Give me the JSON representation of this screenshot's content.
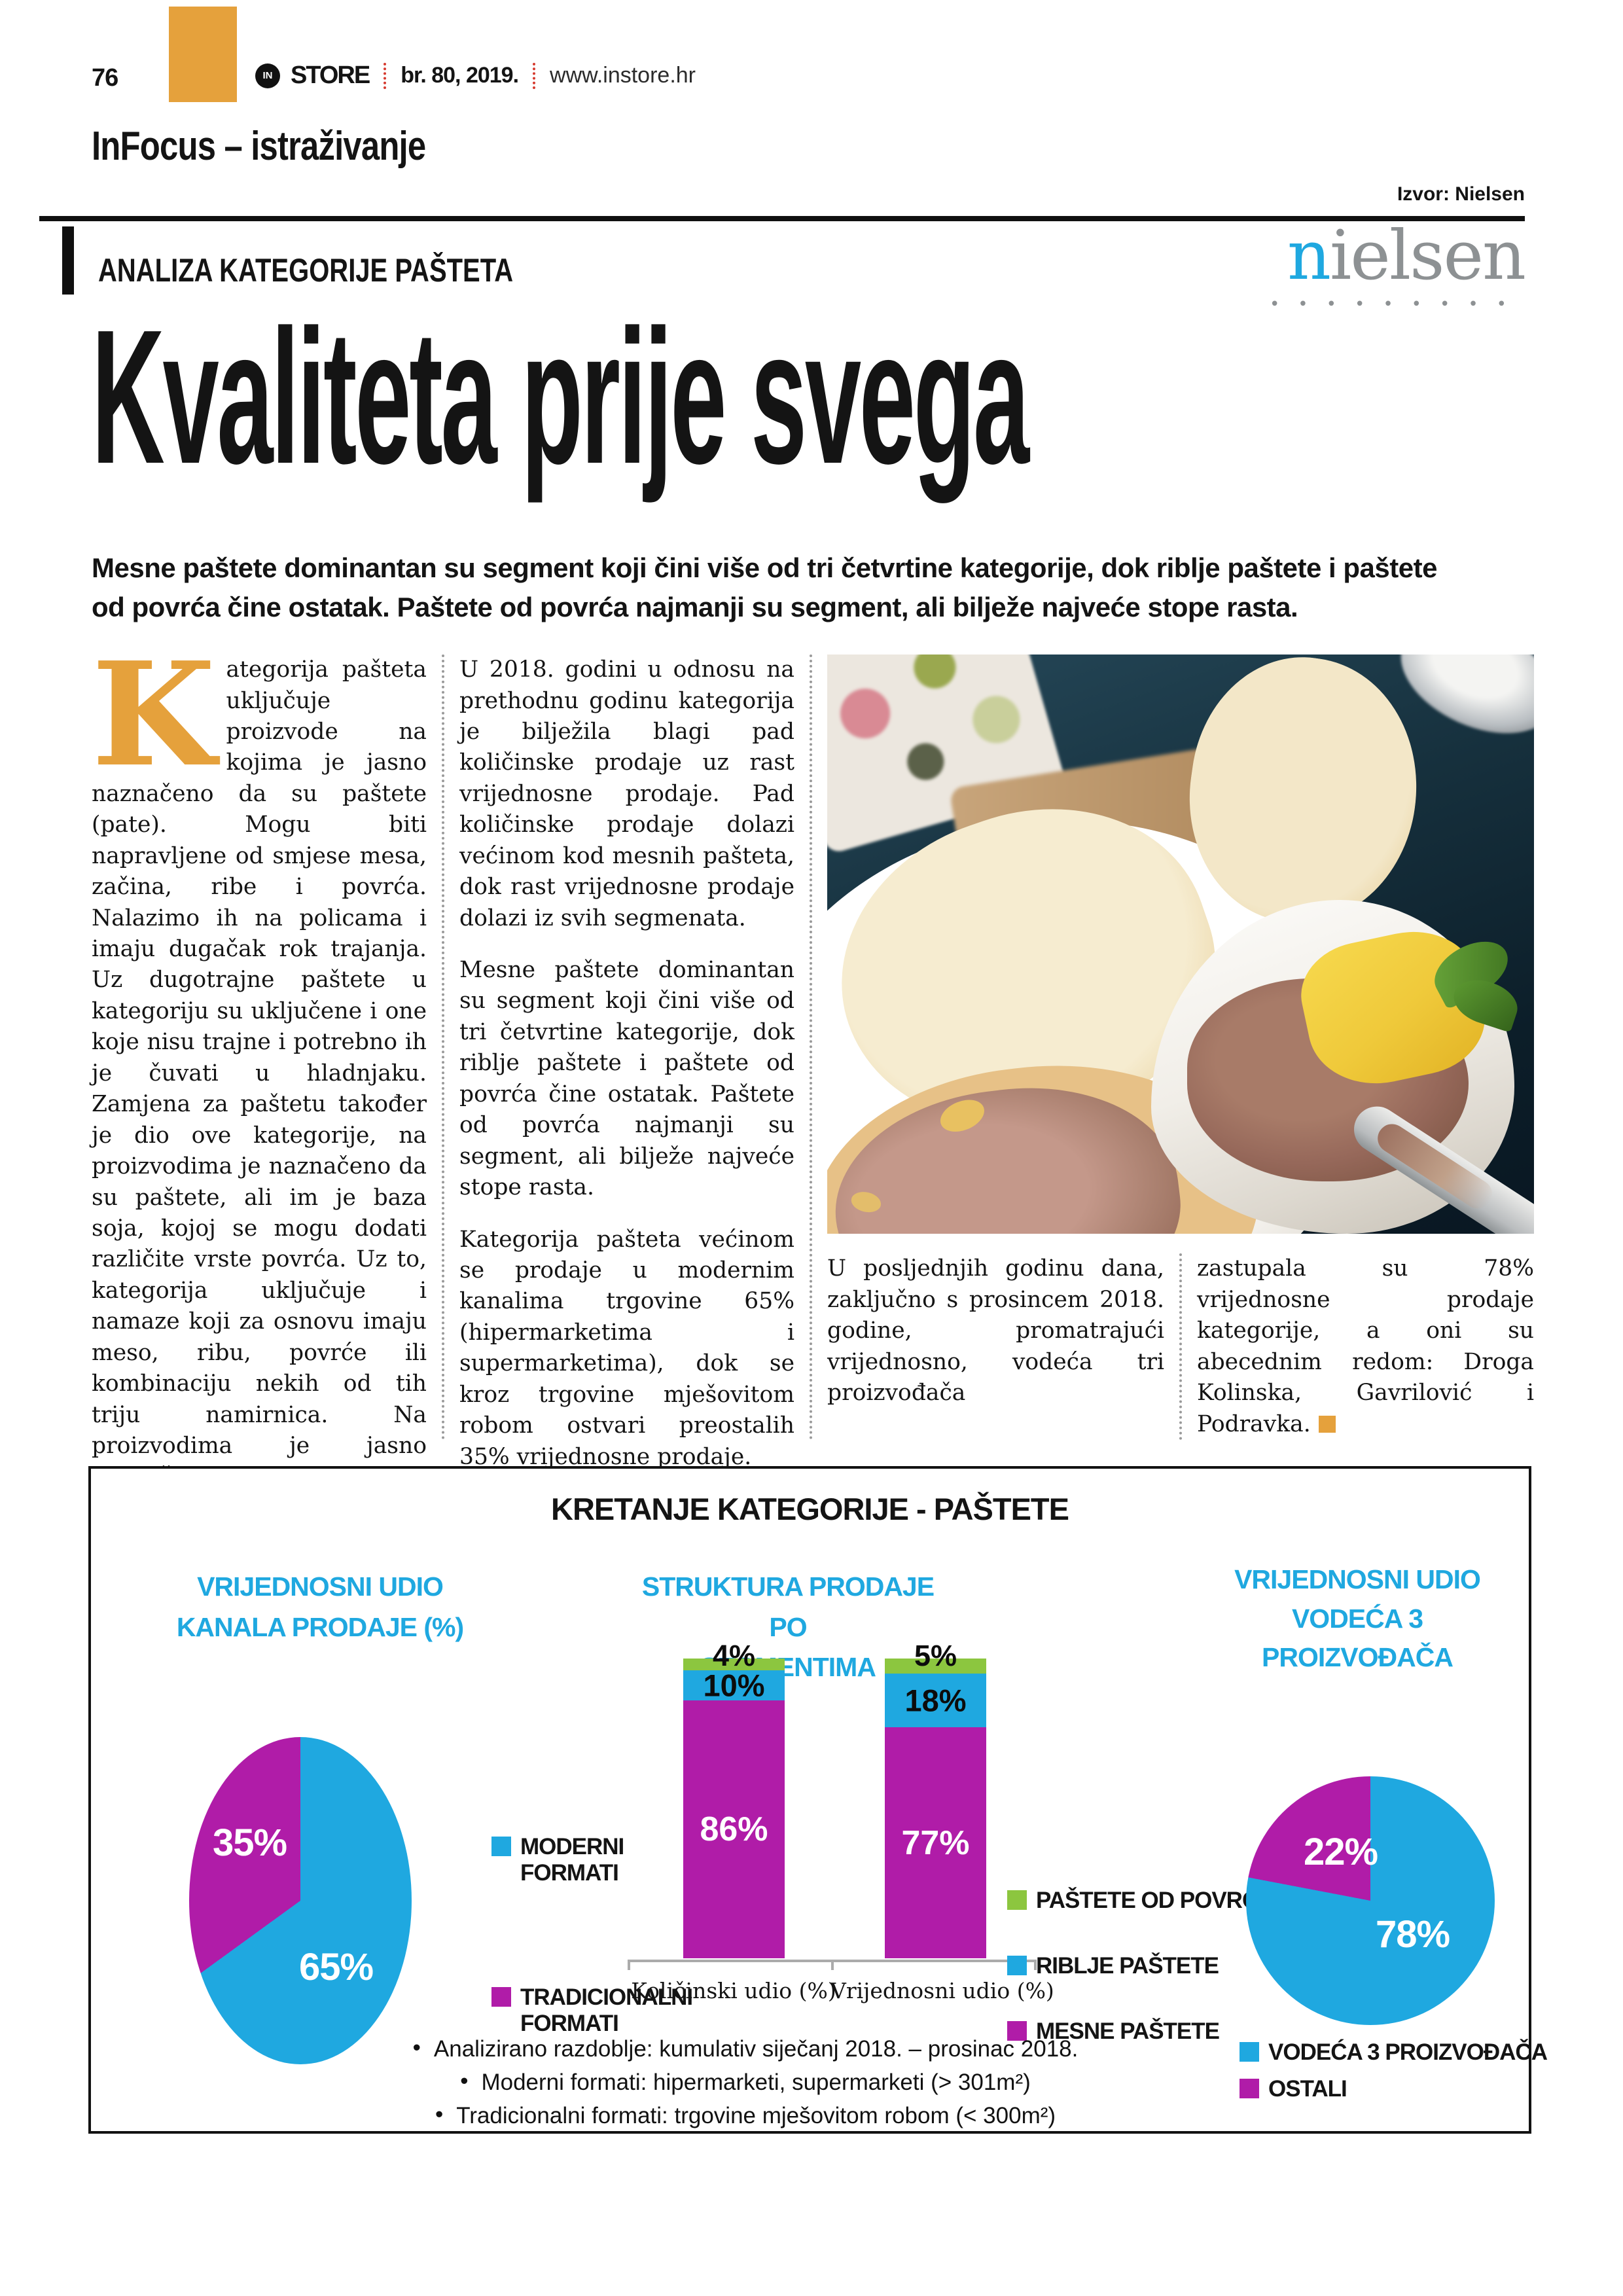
{
  "page_header": {
    "page_number": "76",
    "logo_prefix": "IN",
    "logo_name": "STORE",
    "issue": "br. 80, 2019.",
    "website": "www.instore.hr"
  },
  "section_header": {
    "title": "InFocus – istraživanje",
    "source": "Izvor: Nielsen",
    "kicker": "ANALIZA KATEGORIJE PAŠTETA",
    "nielsen_first": "n",
    "nielsen_rest": "ielsen",
    "nielsen_dots": "•••••••••"
  },
  "article": {
    "headline": "Kvaliteta prije svega",
    "lead": "Mesne paštete dominantan su segment koji čini više od tri četvrtine kategorije, dok riblje paštete i paštete od povrća čine ostatak. Paštete od povrća najmanji su segment, ali bilježe najveće stope rasta.",
    "dropcap": "K",
    "col1": "ategorija pašteta uključuje proizvode na kojima je jasno naznačeno da su paštete (pate). Mogu biti napravljene od smjese mesa, začina, ribe i povrća. Nalazimo ih na policama i imaju dugačak rok trajanja. Uz dugotrajne paštete u kategoriju su uključene i one koje nisu trajne i potrebno ih je čuvati u hladnjaku. Zamjena za paštetu također je dio ove kategorije, na proizvodima je naznačeno da su paštete, ali im je baza soja, kojoj se mogu dodati različite vrste povrća. Uz to, kategorija uključuje i namaze koji za osnovu imaju meso, ribu, povrće ili kombinaciju nekih od tih triju namirnica. Na proizvodima je jasno naznačeno da su paste, namazi ili namazi za sendviče.",
    "col2_p1": "U 2018. godini u odnosu na prethodnu godinu kategorija je bilježila blagi pad količinske prodaje uz rast vrijednosne prodaje. Pad količinske prodaje dolazi većinom kod mesnih pašteta, dok rast vrijednosne prodaje dolazi iz svih segmenata.",
    "col2_p2": "Mesne paštete dominantan su segment koji čini više od tri četvrtine kategorije, dok riblje paštete i paštete od povrća čine ostatak. Paštete od povrća najmanji su segment, ali bilježe najveće stope rasta.",
    "col2_p3": "Kategorija pašteta većinom se prodaje u modernim kanalima trgovine 65% (hipermarketima i supermarketima), dok se kroz trgovine mješovitom robom ostvari preostalih 35% vrijednosne prodaje.",
    "col3": "U posljednjih godinu dana, zaključno s prosincem 2018. godine, promatrajući vrijednosno, vodeća tri proizvođača",
    "col4": "zastupala su 78% vrijednosne prodaje kategorije, a oni su abecednim redom: Droga Kolinska, Gavrilović i Podravka."
  },
  "colors": {
    "accent_orange": "#E5A13C",
    "chart_cyan": "#1FA8E0",
    "chart_magenta": "#B01CA8",
    "chart_green": "#8CC63F",
    "heading_cyan": "#1FA8E0",
    "nielsen_gray": "#8D9193",
    "nielsen_blue": "#1FA8E0",
    "separator_red": "#D63A2F",
    "rule_black": "#101010"
  },
  "panel": {
    "title": "KRETANJE KATEGORIJE - PAŠTETE",
    "notes_bullet": "•",
    "notes": [
      "Analizirano razdoblje: kumulativ siječanj 2018. – prosinac 2018.",
      "Moderni formati: hipermarketi, supermarketi (> 301m²)",
      "Tradicionalni formati: trgovine mješovitom robom (< 300m²)"
    ]
  },
  "chart_data": [
    {
      "type": "pie",
      "shape": "ellipse",
      "title": "VRIJEDNOSNI UDIO KANALA PRODAJE (%)",
      "title_lines": [
        "VRIJEDNOSNI UDIO",
        "KANALA PRODAJE (%)"
      ],
      "slices": [
        {
          "label": "MODERNI FORMATI",
          "value": 65,
          "pct_label": "65%",
          "color": "#1FA8E0"
        },
        {
          "label": "TRADICIONALNI FORMATI",
          "value": 35,
          "pct_label": "35%",
          "color": "#B01CA8"
        }
      ],
      "legend_position": "right"
    },
    {
      "type": "stacked-bar",
      "title": "STRUKTURA PRODAJE PO SEGMENTIMA",
      "title_lines": [
        "STRUKTURA PRODAJE PO",
        "SEGMENTIMA"
      ],
      "categories": [
        "Količinski udio (%)",
        "Vrijednosni udio (%)"
      ],
      "ylim": [
        0,
        100
      ],
      "grid": false,
      "series": [
        {
          "name": "MESNE PAŠTETE",
          "color": "#B01CA8",
          "values": [
            86,
            77
          ]
        },
        {
          "name": "RIBLJE PAŠTETE",
          "color": "#1FA8E0",
          "values": [
            10,
            18
          ]
        },
        {
          "name": "PAŠTETE OD POVRĆA",
          "color": "#8CC63F",
          "values": [
            4,
            5
          ]
        }
      ],
      "bars": [
        {
          "category": "Količinski udio (%)",
          "segments": [
            {
              "name": "MESNE PAŠTETE",
              "pct": 86,
              "label": "86%",
              "color": "#B01CA8"
            },
            {
              "name": "RIBLJE PAŠTETE",
              "pct": 10,
              "label": "10%",
              "color": "#1FA8E0"
            },
            {
              "name": "PAŠTETE OD POVRĆA",
              "pct": 4,
              "label": "4%",
              "color": "#8CC63F"
            }
          ]
        },
        {
          "category": "Vrijednosni udio (%)",
          "segments": [
            {
              "name": "MESNE PAŠTETE",
              "pct": 77,
              "label": "77%",
              "color": "#B01CA8"
            },
            {
              "name": "RIBLJE PAŠTETE",
              "pct": 18,
              "label": "18%",
              "color": "#1FA8E0"
            },
            {
              "name": "PAŠTETE OD POVRĆA",
              "pct": 5,
              "label": "5%",
              "color": "#8CC63F"
            }
          ]
        }
      ],
      "legend": [
        {
          "label": "PAŠTETE OD POVRĆA",
          "color": "#8CC63F"
        },
        {
          "label": "RIBLJE PAŠTETE",
          "color": "#1FA8E0"
        },
        {
          "label": "MESNE PAŠTETE",
          "color": "#B01CA8"
        }
      ]
    },
    {
      "type": "pie",
      "shape": "circle",
      "title": "VRIJEDNOSNI UDIO VODEĆA 3 PROIZVOĐAČA",
      "title_lines": [
        "VRIJEDNOSNI UDIO",
        "VODEĆA 3",
        "PROIZVOĐAČA"
      ],
      "slices": [
        {
          "label": "VODEĆA 3 PROIZVOĐAČA",
          "value": 78,
          "pct_label": "78%",
          "color": "#1FA8E0"
        },
        {
          "label": "OSTALI",
          "value": 22,
          "pct_label": "22%",
          "color": "#B01CA8"
        }
      ],
      "legend_position": "bottom"
    }
  ]
}
